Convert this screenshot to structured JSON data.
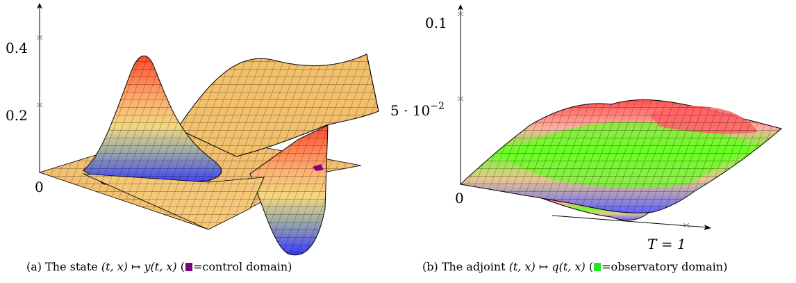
{
  "figure": {
    "panel_a": {
      "z_ticks": [
        "0.4",
        "0.2"
      ],
      "origin_label": "0",
      "caption": {
        "tag": "(a)",
        "text_before": "The state",
        "math": "(t, x) ↦ y(t, x)",
        "legend_text": "=control domain",
        "swatch_color": "#800080"
      }
    },
    "panel_b": {
      "z_ticks": [
        "0.1",
        "5 · 10"
      ],
      "z_tick_exponent": "−2",
      "origin_label": "0",
      "t_axis_label": "T = 1",
      "caption": {
        "tag": "(b)",
        "text_before": "The adjoint",
        "math": "(t, x) ↦ q(t, x)",
        "legend_text": "=observatory domain",
        "swatch_color": "#22e622"
      }
    }
  }
}
